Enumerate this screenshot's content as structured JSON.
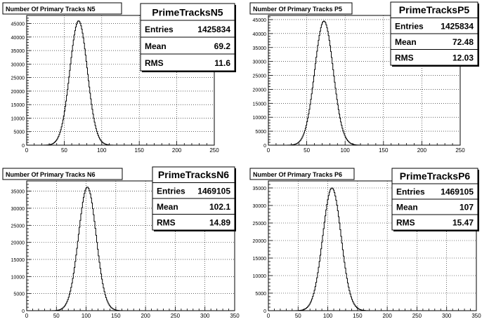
{
  "chart_data": [
    {
      "type": "histogram",
      "title": "Number Of Primary Tracks N5",
      "stats": {
        "name": "PrimeTracksN5",
        "labels": [
          "Entries",
          "Mean",
          "RMS"
        ],
        "values": [
          "1425834",
          "69.2",
          "11.6"
        ]
      },
      "xlim": [
        0,
        250
      ],
      "ylim": [
        0,
        48000
      ],
      "xticks": [
        0,
        50,
        100,
        150,
        200,
        250
      ],
      "yticks": [
        0,
        5000,
        10000,
        15000,
        20000,
        25000,
        30000,
        35000,
        40000,
        45000
      ],
      "series": [
        {
          "mean": 69.2,
          "rms": 11.6,
          "peak": 46000
        }
      ],
      "grid": true
    },
    {
      "type": "histogram",
      "title": "Number Of Primary Tracks P5",
      "stats": {
        "name": "PrimeTracksP5",
        "labels": [
          "Entries",
          "Mean",
          "RMS"
        ],
        "values": [
          "1425834",
          "72.48",
          "12.03"
        ]
      },
      "xlim": [
        0,
        250
      ],
      "ylim": [
        0,
        46500
      ],
      "xticks": [
        0,
        50,
        100,
        150,
        200,
        250
      ],
      "yticks": [
        0,
        5000,
        10000,
        15000,
        20000,
        25000,
        30000,
        35000,
        40000,
        45000
      ],
      "series": [
        {
          "mean": 72.48,
          "rms": 12.03,
          "peak": 44500
        }
      ],
      "grid": true
    },
    {
      "type": "histogram",
      "title": "Number Of Primary Tracks N6",
      "stats": {
        "name": "PrimeTracksN6",
        "labels": [
          "Entries",
          "Mean",
          "RMS"
        ],
        "values": [
          "1469105",
          "102.1",
          "14.89"
        ]
      },
      "xlim": [
        0,
        350
      ],
      "ylim": [
        0,
        38000
      ],
      "xticks": [
        0,
        50,
        100,
        150,
        200,
        250,
        300,
        350
      ],
      "yticks": [
        0,
        5000,
        10000,
        15000,
        20000,
        25000,
        30000,
        35000
      ],
      "series": [
        {
          "mean": 102.1,
          "rms": 14.89,
          "peak": 36200
        }
      ],
      "grid": true
    },
    {
      "type": "histogram",
      "title": "Number Of Primary Tracks P6",
      "stats": {
        "name": "PrimeTracksP6",
        "labels": [
          "Entries",
          "Mean",
          "RMS"
        ],
        "values": [
          "1469105",
          "107",
          "15.47"
        ]
      },
      "xlim": [
        0,
        350
      ],
      "ylim": [
        0,
        37000
      ],
      "xticks": [
        0,
        50,
        100,
        150,
        200,
        250,
        300,
        350
      ],
      "yticks": [
        0,
        5000,
        10000,
        15000,
        20000,
        25000,
        30000,
        35000
      ],
      "series": [
        {
          "mean": 107,
          "rms": 15.47,
          "peak": 35000
        }
      ],
      "grid": true
    }
  ]
}
